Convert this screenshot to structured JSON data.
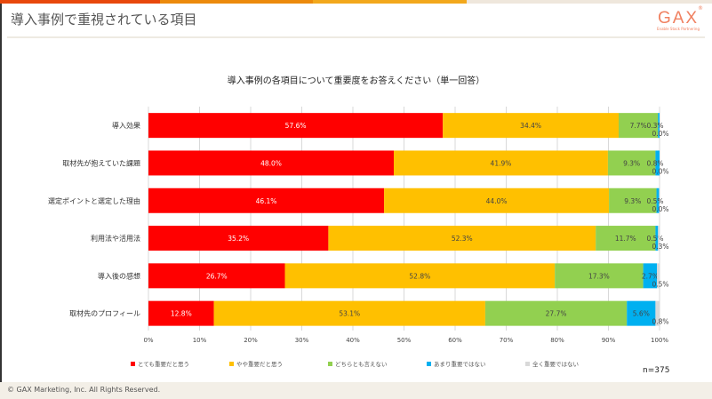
{
  "header": {
    "title": "導入事例で重視されている項目",
    "logo": "GAX",
    "logo_tagline": "Enable Stack Partnering"
  },
  "footer": {
    "copyright": "© GAX Marketing, Inc. All Rights Reserved."
  },
  "colors": {
    "stripe": [
      "#e8480c",
      "#ec8a0c",
      "#f2a81c",
      "#efe7dc"
    ]
  },
  "chart_data": {
    "type": "bar",
    "stacked": true,
    "orientation": "horizontal",
    "title": "導入事例の各項目について重要度をお答えください（単一回答）",
    "categories": [
      "導入効果",
      "取材先が抱えていた課題",
      "選定ポイントと選定した理由",
      "利用法や活用法",
      "導入後の感想",
      "取材先のプロフィール"
    ],
    "series": [
      {
        "name": "とても重要だと思う",
        "color": "#ff0000",
        "values": [
          57.6,
          48.0,
          46.1,
          35.2,
          26.7,
          12.8
        ]
      },
      {
        "name": "やや重要だと思う",
        "color": "#ffc000",
        "values": [
          34.4,
          41.9,
          44.0,
          52.3,
          52.8,
          53.1
        ]
      },
      {
        "name": "どちらとも言えない",
        "color": "#92d050",
        "values": [
          7.7,
          9.3,
          9.3,
          11.7,
          17.3,
          27.7
        ]
      },
      {
        "name": "あまり重要ではない",
        "color": "#00b0f0",
        "values": [
          0.3,
          0.8,
          0.5,
          0.5,
          2.7,
          5.6
        ]
      },
      {
        "name": "全く重要ではない",
        "color": "#d9d9d9",
        "values": [
          0.0,
          0.0,
          0.0,
          0.3,
          0.5,
          0.8
        ]
      }
    ],
    "xticks": [
      "0%",
      "10%",
      "20%",
      "30%",
      "40%",
      "50%",
      "60%",
      "70%",
      "80%",
      "90%",
      "100%"
    ],
    "xlim": [
      0,
      100
    ],
    "legend": "bottom",
    "note": "n=375"
  }
}
